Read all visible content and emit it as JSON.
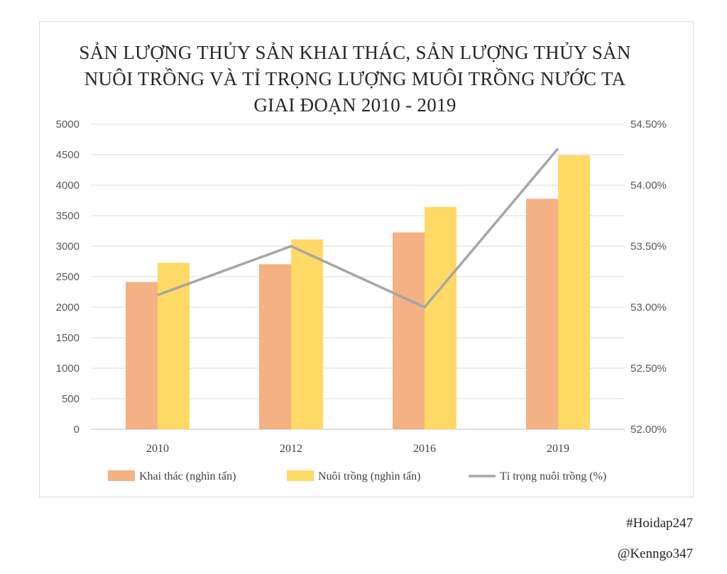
{
  "chart_data": {
    "type": "bar",
    "title": "SẢN LƯỢNG THỦY SẢN KHAI THÁC, SẢN LƯỢNG THỦY SẢN NUÔI TRỒNG VÀ TỈ TRỌNG LƯỢNG MUÔI TRỒNG NƯỚC TA GIAI ĐOẠN 2010 - 2019",
    "categories": [
      "2010",
      "2012",
      "2016",
      "2019"
    ],
    "series": [
      {
        "name": "Khai thác (nghìn tấn)",
        "type": "bar",
        "axis": "left",
        "color": "#f4b183",
        "values": [
          2414,
          2705,
          3227,
          3777
        ]
      },
      {
        "name": "Nuôi trồng (nghìn tấn)",
        "type": "bar",
        "axis": "left",
        "color": "#ffd966",
        "values": [
          2728,
          3111,
          3644,
          4490
        ]
      },
      {
        "name": "Tỉ trọng nuôi trồng (%)",
        "type": "line",
        "axis": "right",
        "color": "#a6a6a6",
        "values": [
          53.1,
          53.5,
          53.0,
          54.3
        ]
      }
    ],
    "y_left": {
      "ylim": [
        0,
        5000
      ],
      "ticks": [
        "0",
        "500",
        "1000",
        "1500",
        "2000",
        "2500",
        "3000",
        "3500",
        "4000",
        "4500",
        "5000"
      ]
    },
    "y_right": {
      "ylim": [
        52.0,
        54.5
      ],
      "ticks": [
        "52.00%",
        "52.50%",
        "53.00%",
        "53.50%",
        "54.00%",
        "54.50%"
      ]
    },
    "grid": true,
    "legend_position": "bottom"
  },
  "credits": {
    "hashtag": "#Hoidap247",
    "author": "@Kenngo347"
  }
}
